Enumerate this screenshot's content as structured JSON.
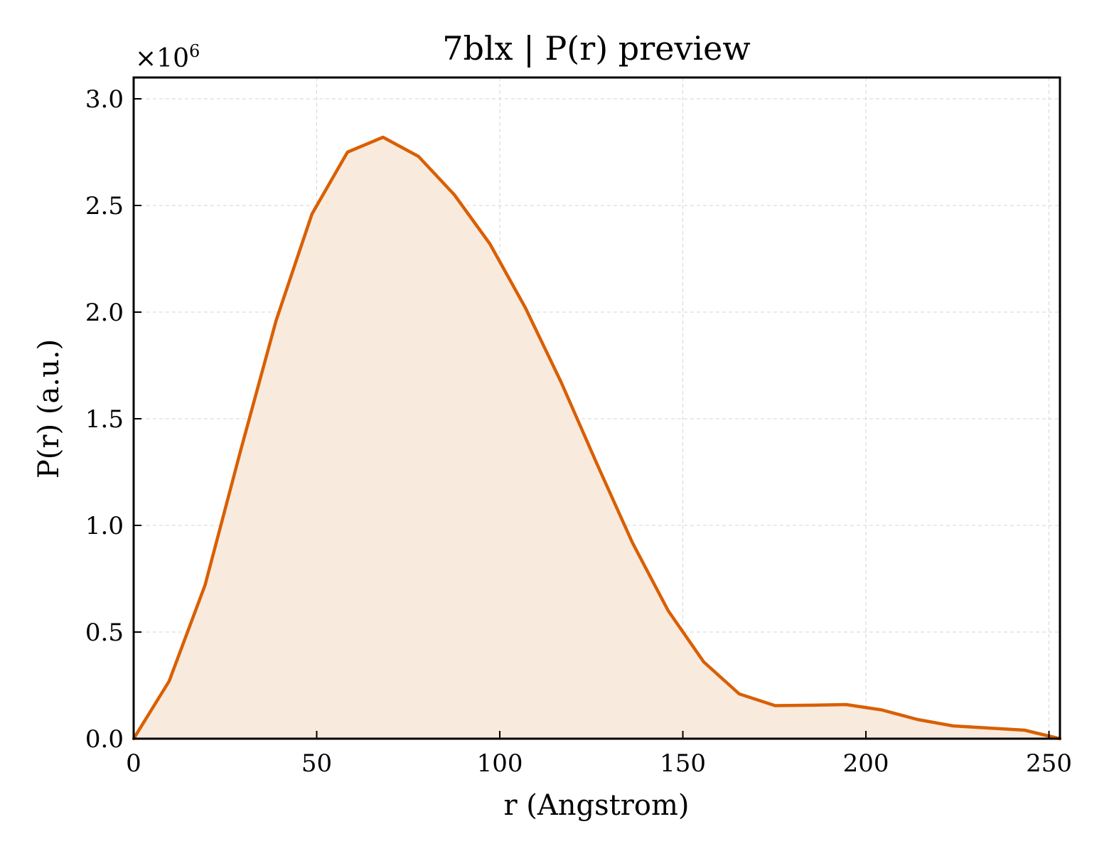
{
  "chart_data": {
    "type": "area",
    "title": "7blx | P(r) preview",
    "xlabel": "r (Angstrom)",
    "ylabel": "P(r) (a.u.)",
    "y_multiplier_label": "×10",
    "y_multiplier_exponent": "6",
    "xlim": [
      0,
      253
    ],
    "ylim": [
      0,
      3.1
    ],
    "x_ticks": [
      0,
      50,
      100,
      150,
      200,
      250
    ],
    "x_tick_labels": [
      "0",
      "50",
      "100",
      "150",
      "200",
      "250"
    ],
    "y_ticks": [
      0.0,
      0.5,
      1.0,
      1.5,
      2.0,
      2.5,
      3.0
    ],
    "y_tick_labels": [
      "0.0",
      "0.5",
      "1.0",
      "1.5",
      "2.0",
      "2.5",
      "3.0"
    ],
    "grid": true,
    "line_color": "#d95f02",
    "fill_color": "#f9eade",
    "x": [
      0,
      9.7,
      19.5,
      29.2,
      38.9,
      48.7,
      58.4,
      68.1,
      77.8,
      87.6,
      97.3,
      107.0,
      116.8,
      126.5,
      136.2,
      146.0,
      155.7,
      165.4,
      175.2,
      184.9,
      194.6,
      204.3,
      214.1,
      223.8,
      233.5,
      243.3,
      253.0
    ],
    "series": [
      {
        "values": [
          0.0,
          0.27,
          0.72,
          1.35,
          1.96,
          2.46,
          2.75,
          2.82,
          2.73,
          2.55,
          2.32,
          2.02,
          1.67,
          1.29,
          0.92,
          0.6,
          0.36,
          0.21,
          0.155,
          0.157,
          0.16,
          0.135,
          0.09,
          0.06,
          0.05,
          0.04,
          0.0
        ]
      }
    ]
  }
}
